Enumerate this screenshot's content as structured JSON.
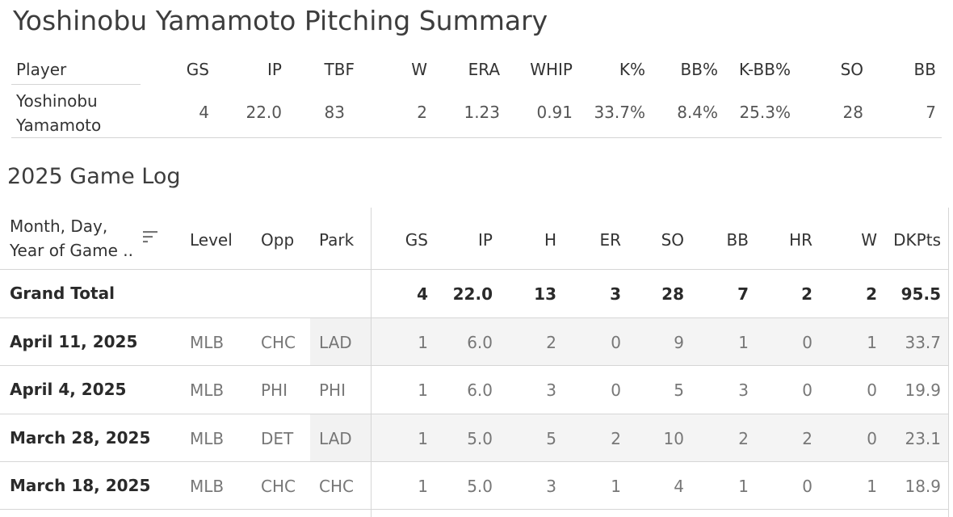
{
  "page_title": "Yoshinobu Yamamoto Pitching Summary",
  "summary": {
    "headers": [
      "Player",
      "GS",
      "IP",
      "TBF",
      "W",
      "ERA",
      "WHIP",
      "K%",
      "BB%",
      "K-BB%",
      "SO",
      "BB"
    ],
    "player_line1": "Yoshinobu",
    "player_line2": "Yamamoto",
    "values": [
      "4",
      "22.0",
      "83",
      "2",
      "1.23",
      "0.91",
      "33.7%",
      "8.4%",
      "25.3%",
      "28",
      "7"
    ]
  },
  "game_log": {
    "title": "2025 Game Log",
    "date_header_line1": "Month, Day,",
    "date_header_line2": "Year of Game ..",
    "sort_icon": "sort-descending-icon",
    "headers": [
      "Level",
      "Opp",
      "Park",
      "GS",
      "IP",
      "H",
      "ER",
      "SO",
      "BB",
      "HR",
      "W",
      "DKPts"
    ],
    "grand_total": {
      "label": "Grand Total",
      "values": [
        "4",
        "22.0",
        "13",
        "3",
        "28",
        "7",
        "2",
        "2",
        "95.5"
      ]
    },
    "rows": [
      {
        "date": "April 11, 2025",
        "level": "MLB",
        "opp": "CHC",
        "park": "LAD",
        "values": [
          "1",
          "6.0",
          "2",
          "0",
          "9",
          "1",
          "0",
          "1",
          "33.7"
        ]
      },
      {
        "date": "April 4, 2025",
        "level": "MLB",
        "opp": "PHI",
        "park": "PHI",
        "values": [
          "1",
          "6.0",
          "3",
          "0",
          "5",
          "3",
          "0",
          "0",
          "19.9"
        ]
      },
      {
        "date": "March 28, 2025",
        "level": "MLB",
        "opp": "DET",
        "park": "LAD",
        "values": [
          "1",
          "5.0",
          "5",
          "2",
          "10",
          "2",
          "2",
          "0",
          "23.1"
        ]
      },
      {
        "date": "March 18, 2025",
        "level": "MLB",
        "opp": "CHC",
        "park": "CHC",
        "values": [
          "1",
          "5.0",
          "3",
          "1",
          "4",
          "1",
          "0",
          "1",
          "18.9"
        ]
      }
    ]
  }
}
